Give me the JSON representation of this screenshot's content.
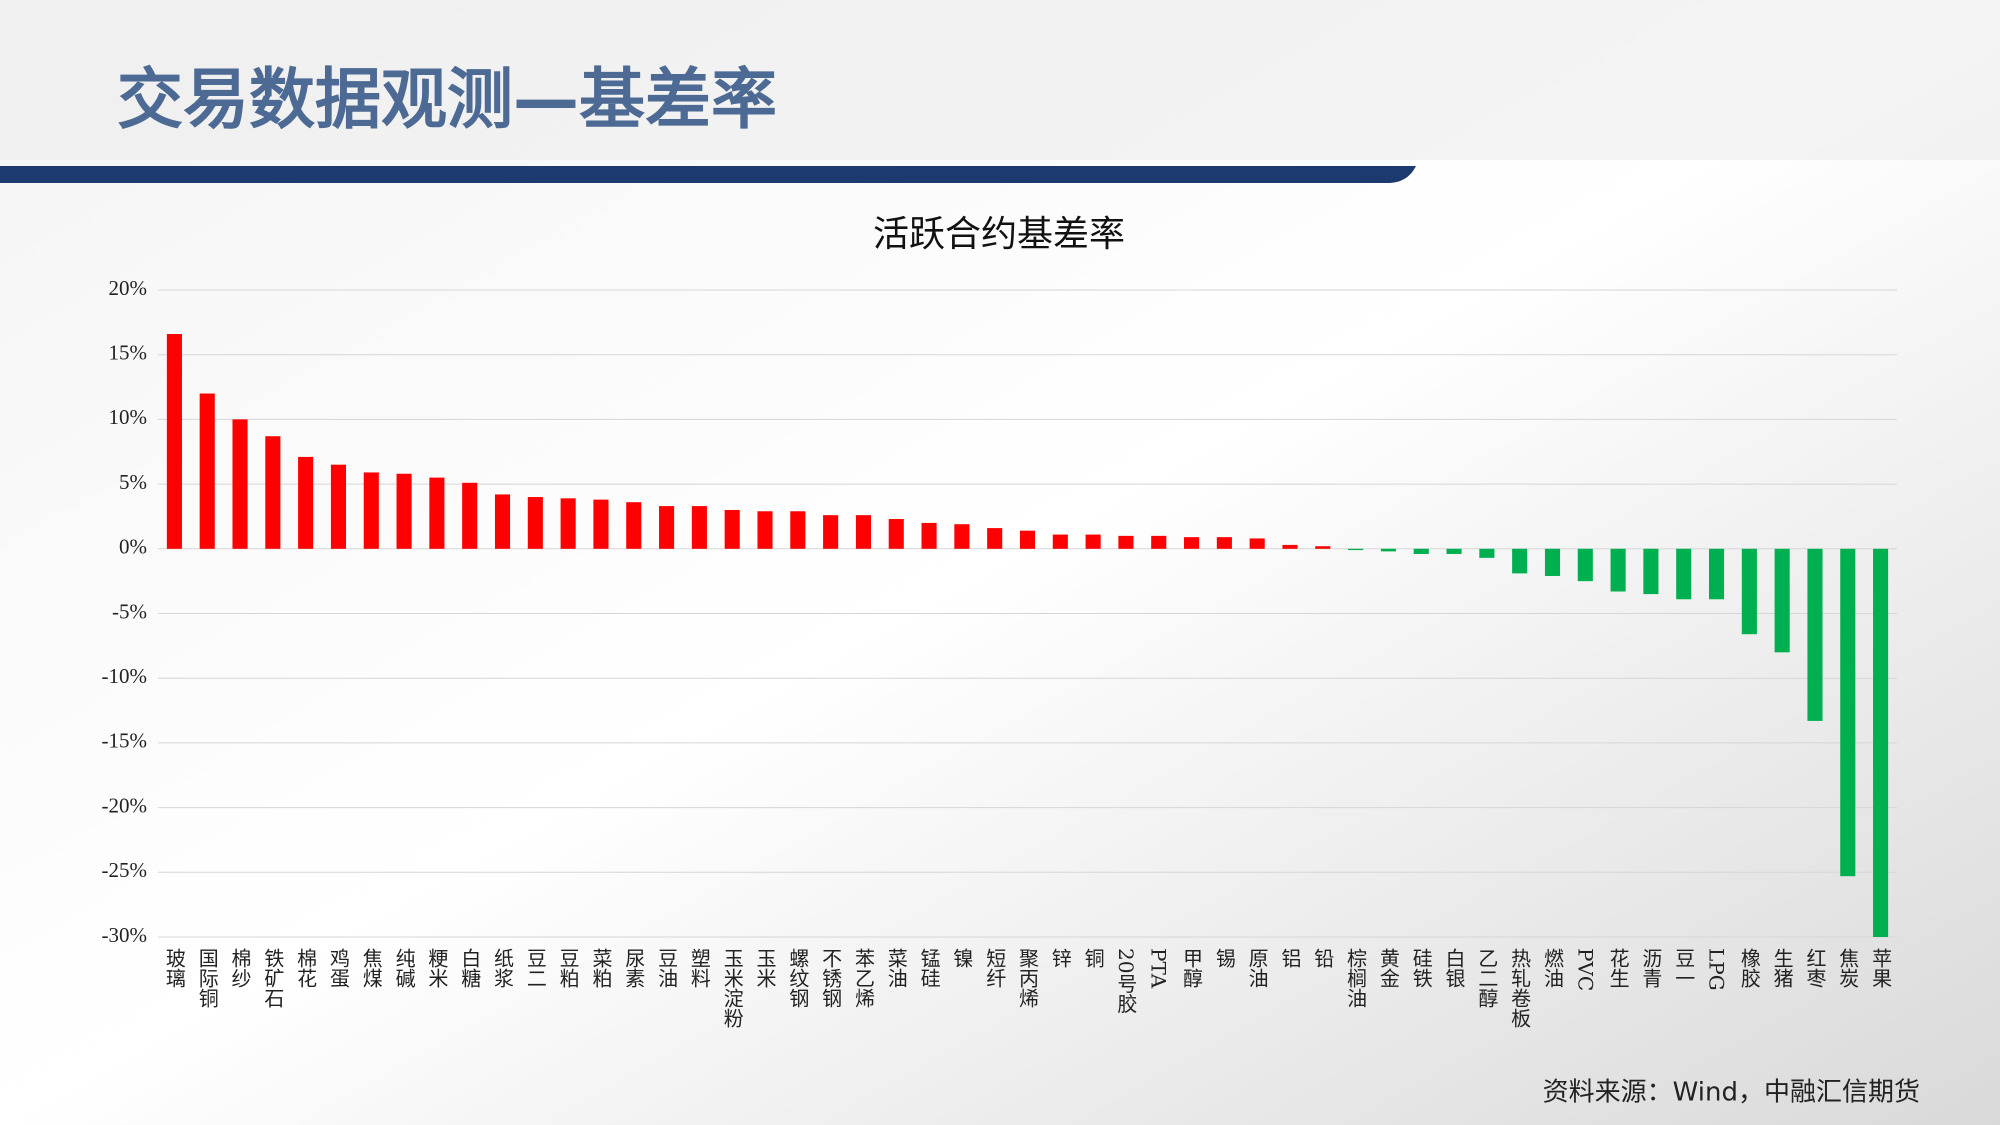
{
  "page_title": "交易数据观测—基差率",
  "source": "资料来源：Wind，中融汇信期货",
  "chart_data": {
    "type": "bar",
    "title": "活跃合约基差率",
    "categories": [
      "玻璃",
      "国际铜",
      "棉纱",
      "铁矿石",
      "棉花",
      "鸡蛋",
      "焦煤",
      "纯碱",
      "粳米",
      "白糖",
      "纸浆",
      "豆二",
      "豆粕",
      "菜粕",
      "尿素",
      "豆油",
      "塑料",
      "玉米淀粉",
      "玉米",
      "螺纹钢",
      "不锈钢",
      "苯乙烯",
      "菜油",
      "锰硅",
      "镍",
      "短纤",
      "聚丙烯",
      "锌",
      "铜",
      "20号胶",
      "PTA",
      "甲醇",
      "锡",
      "原油",
      "铝",
      "铅",
      "棕榈油",
      "黄金",
      "硅铁",
      "白银",
      "乙二醇",
      "热轧卷板",
      "燃油",
      "PVC",
      "花生",
      "沥青",
      "豆一",
      "LPG",
      "橡胶",
      "生猪",
      "红枣",
      "焦炭",
      "苹果"
    ],
    "values": [
      16.6,
      12.0,
      10.0,
      8.7,
      7.1,
      6.5,
      5.9,
      5.8,
      5.5,
      5.1,
      4.2,
      4.0,
      3.9,
      3.8,
      3.6,
      3.3,
      3.3,
      3.0,
      2.9,
      2.9,
      2.6,
      2.6,
      2.3,
      2.0,
      1.9,
      1.6,
      1.4,
      1.1,
      1.1,
      1.0,
      1.0,
      0.9,
      0.9,
      0.8,
      0.3,
      0.2,
      -0.1,
      -0.2,
      -0.4,
      -0.4,
      -0.7,
      -1.9,
      -2.1,
      -2.5,
      -3.3,
      -3.5,
      -3.9,
      -3.9,
      -6.6,
      -8.0,
      -13.3,
      -25.3,
      -30.0
    ],
    "positive_color": "#ff0000",
    "negative_color": "#00b050",
    "ylim": [
      -30,
      20
    ],
    "yticks": [
      {
        "value": -30,
        "label": "-30%"
      },
      {
        "value": -25,
        "label": "-25%"
      },
      {
        "value": -20,
        "label": "-20%"
      },
      {
        "value": -15,
        "label": "-15%"
      },
      {
        "value": -10,
        "label": "-10%"
      },
      {
        "value": -5,
        "label": "-5%"
      },
      {
        "value": 0,
        "label": "0%"
      },
      {
        "value": 5,
        "label": "5%"
      },
      {
        "value": 10,
        "label": "10%"
      },
      {
        "value": 15,
        "label": "15%"
      },
      {
        "value": 20,
        "label": "20%"
      }
    ],
    "grid": true
  }
}
